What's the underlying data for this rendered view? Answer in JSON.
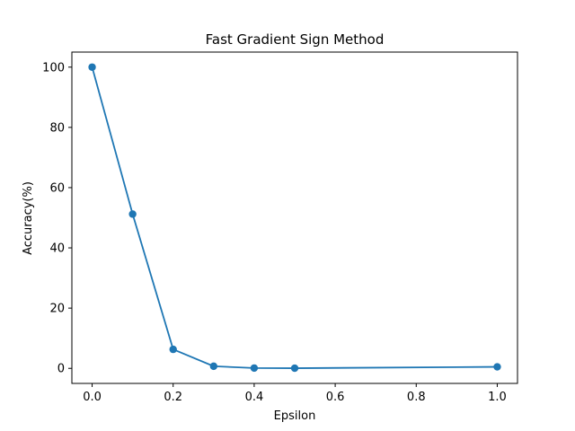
{
  "chart_data": {
    "type": "line",
    "title": "Fast Gradient Sign Method",
    "xlabel": "Epsilon",
    "ylabel": "Accuracy(%)",
    "xlim": [
      -0.05,
      1.05
    ],
    "ylim": [
      -5,
      105
    ],
    "xticks": [
      0.0,
      0.2,
      0.4,
      0.6,
      0.8,
      1.0
    ],
    "xtick_labels": [
      "0.0",
      "0.2",
      "0.4",
      "0.6",
      "0.8",
      "1.0"
    ],
    "yticks": [
      0,
      20,
      40,
      60,
      80,
      100
    ],
    "ytick_labels": [
      "0",
      "20",
      "40",
      "60",
      "80",
      "100"
    ],
    "grid": false,
    "series": [
      {
        "color": "#1f77b4",
        "marker": "circle",
        "x": [
          0.0,
          0.1,
          0.2,
          0.3,
          0.4,
          0.5,
          1.0
        ],
        "y": [
          100.0,
          51.2,
          6.3,
          0.7,
          0.1,
          0.05,
          0.5
        ]
      }
    ]
  }
}
